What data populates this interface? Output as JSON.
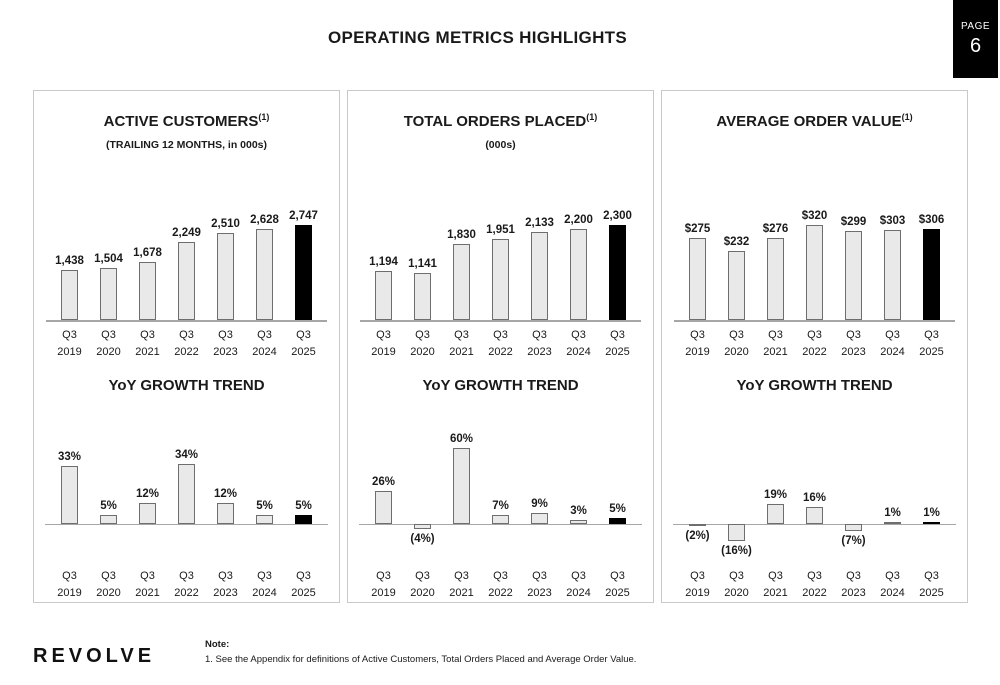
{
  "header": {
    "title": "OPERATING METRICS HIGHLIGHTS",
    "page_badge": {
      "label": "PAGE",
      "number": "6"
    }
  },
  "footer": {
    "logo": "REVOLVE",
    "note_label": "Note:",
    "note_text": "1. See the Appendix for definitions of Active Customers, Total Orders Placed and Average Order Value."
  },
  "colors": {
    "bar_fill": "#e9e9e9",
    "bar_border": "#6e6e6e",
    "highlight_bar": "#000000",
    "panel_border": "#c9c9c9",
    "axis_line": "#a6a6a6",
    "badge_bg": "#000000",
    "badge_text": "#ffffff"
  },
  "chart_data": [
    {
      "id": "active-customers",
      "type": "bar",
      "title": "ACTIVE CUSTOMERS",
      "title_sup": "(1)",
      "subtitle": "(TRAILING 12 MONTHS, in 000s)",
      "categories": [
        "Q3 2019",
        "Q3 2020",
        "Q3 2021",
        "Q3 2022",
        "Q3 2023",
        "Q3 2024",
        "Q3 2025"
      ],
      "values": [
        1438,
        1504,
        1678,
        2249,
        2510,
        2628,
        2747
      ],
      "labels": [
        "1,438",
        "1,504",
        "1,678",
        "2,249",
        "2,510",
        "2,628",
        "2,747"
      ],
      "ylim": [
        0,
        2747
      ],
      "grid": false,
      "highlight_last": true
    },
    {
      "id": "total-orders-placed",
      "type": "bar",
      "title": "TOTAL ORDERS PLACED",
      "title_sup": "(1)",
      "subtitle": "(000s)",
      "categories": [
        "Q3 2019",
        "Q3 2020",
        "Q3 2021",
        "Q3 2022",
        "Q3 2023",
        "Q3 2024",
        "Q3 2025"
      ],
      "values": [
        1194,
        1141,
        1830,
        1951,
        2133,
        2200,
        2300
      ],
      "labels": [
        "1,194",
        "1,141",
        "1,830",
        "1,951",
        "2,133",
        "2,200",
        "2,300"
      ],
      "ylim": [
        0,
        2300
      ],
      "grid": false,
      "highlight_last": true
    },
    {
      "id": "average-order-value",
      "type": "bar",
      "title": "AVERAGE ORDER VALUE",
      "title_sup": "(1)",
      "categories": [
        "Q3 2019",
        "Q3 2020",
        "Q3 2021",
        "Q3 2022",
        "Q3 2023",
        "Q3 2024",
        "Q3 2025"
      ],
      "values": [
        275,
        232,
        276,
        320,
        299,
        303,
        306
      ],
      "labels": [
        "$275",
        "$232",
        "$276",
        "$320",
        "$299",
        "$303",
        "$306"
      ],
      "ylim": [
        0,
        320
      ],
      "grid": false,
      "highlight_last": true
    },
    {
      "id": "active-customers-yoy",
      "type": "bar",
      "title": "YoY GROWTH TREND",
      "categories": [
        "Q3 2019",
        "Q3 2020",
        "Q3 2021",
        "Q3 2022",
        "Q3 2023",
        "Q3 2024",
        "Q3 2025"
      ],
      "values": [
        33,
        5,
        12,
        34,
        12,
        5,
        5
      ],
      "labels": [
        "33%",
        "5%",
        "12%",
        "34%",
        "12%",
        "5%",
        "5%"
      ],
      "ylim": [
        -10,
        40
      ],
      "grid": false,
      "highlight_last": true
    },
    {
      "id": "total-orders-placed-yoy",
      "type": "bar",
      "title": "YoY GROWTH TREND",
      "categories": [
        "Q3 2019",
        "Q3 2020",
        "Q3 2021",
        "Q3 2022",
        "Q3 2023",
        "Q3 2024",
        "Q3 2025"
      ],
      "values": [
        26,
        -4,
        60,
        7,
        9,
        3,
        5
      ],
      "labels": [
        "26%",
        "(4%)",
        "60%",
        "7%",
        "9%",
        "3%",
        "5%"
      ],
      "ylim": [
        -20,
        70
      ],
      "grid": false,
      "highlight_last": true
    },
    {
      "id": "average-order-value-yoy",
      "type": "bar",
      "title": "YoY GROWTH TREND",
      "categories": [
        "Q3 2019",
        "Q3 2020",
        "Q3 2021",
        "Q3 2022",
        "Q3 2023",
        "Q3 2024",
        "Q3 2025"
      ],
      "values": [
        -2,
        -16,
        19,
        16,
        -7,
        1,
        1
      ],
      "labels": [
        "(2%)",
        "(16%)",
        "19%",
        "16%",
        "(7%)",
        "1%",
        "1%"
      ],
      "ylim": [
        -30,
        30
      ],
      "grid": false,
      "highlight_last": true
    }
  ]
}
